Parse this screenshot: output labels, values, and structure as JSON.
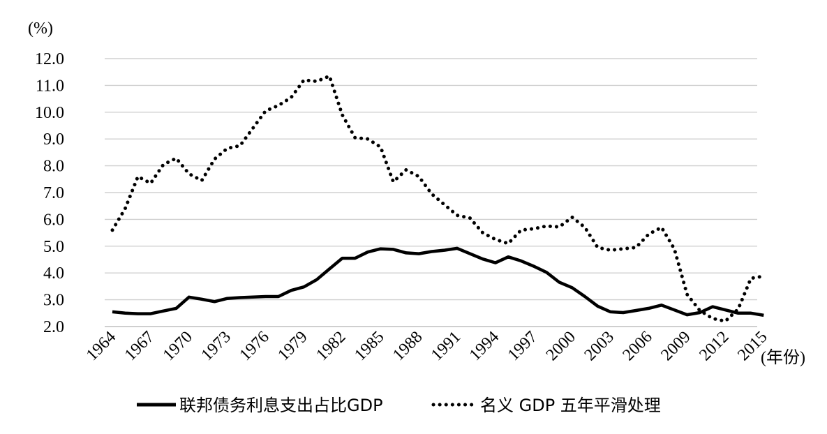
{
  "chart_data": {
    "type": "line",
    "y_unit_label": "(%)",
    "x_unit_label": "(年份)",
    "ylim": [
      2.0,
      12.0
    ],
    "y_ticks": [
      "2.0",
      "3.0",
      "4.0",
      "5.0",
      "6.0",
      "7.0",
      "8.0",
      "9.0",
      "10.0",
      "11.0",
      "12.0"
    ],
    "x_tick_labels": [
      "1964",
      "1967",
      "1970",
      "1973",
      "1976",
      "1979",
      "1982",
      "1985",
      "1988",
      "1991",
      "1994",
      "1997",
      "2000",
      "2003",
      "2006",
      "2009",
      "2012",
      "2015"
    ],
    "grid": true,
    "legend_position": "bottom",
    "x": [
      1964,
      1965,
      1966,
      1967,
      1968,
      1969,
      1970,
      1971,
      1972,
      1973,
      1974,
      1975,
      1976,
      1977,
      1978,
      1979,
      1980,
      1981,
      1982,
      1983,
      1984,
      1985,
      1986,
      1987,
      1988,
      1989,
      1990,
      1991,
      1992,
      1993,
      1994,
      1995,
      1996,
      1997,
      1998,
      1999,
      2000,
      2001,
      2002,
      2003,
      2004,
      2005,
      2006,
      2007,
      2008,
      2009,
      2010,
      2011,
      2012,
      2013,
      2014,
      2015
    ],
    "series": [
      {
        "name": "联邦债务利息支出占比GDP",
        "style": "solid",
        "color": "#000000",
        "values": [
          2.55,
          2.5,
          2.48,
          2.48,
          2.58,
          2.68,
          3.1,
          3.02,
          2.93,
          3.05,
          3.08,
          3.1,
          3.12,
          3.12,
          3.35,
          3.48,
          3.75,
          4.15,
          4.55,
          4.55,
          4.78,
          4.9,
          4.88,
          4.75,
          4.72,
          4.8,
          4.85,
          4.92,
          4.72,
          4.52,
          4.38,
          4.6,
          4.45,
          4.25,
          4.02,
          3.65,
          3.45,
          3.12,
          2.76,
          2.55,
          2.52,
          2.6,
          2.68,
          2.8,
          2.62,
          2.44,
          2.52,
          2.74,
          2.62,
          2.5,
          2.5,
          2.42
        ]
      },
      {
        "name": "名义 GDP 五年平滑处理",
        "style": "dotted",
        "color": "#000000",
        "values": [
          5.6,
          6.4,
          7.6,
          7.35,
          8.05,
          8.28,
          7.7,
          7.45,
          8.25,
          8.65,
          8.75,
          9.4,
          10.05,
          10.25,
          10.55,
          11.2,
          11.15,
          11.35,
          9.9,
          9.05,
          9.0,
          8.7,
          7.4,
          7.85,
          7.6,
          6.95,
          6.55,
          6.15,
          6.05,
          5.5,
          5.25,
          5.1,
          5.6,
          5.65,
          5.75,
          5.72,
          6.08,
          5.7,
          4.95,
          4.85,
          4.9,
          4.95,
          5.45,
          5.7,
          4.9,
          3.2,
          2.6,
          2.3,
          2.2,
          2.65,
          3.8,
          3.88
        ]
      }
    ]
  }
}
